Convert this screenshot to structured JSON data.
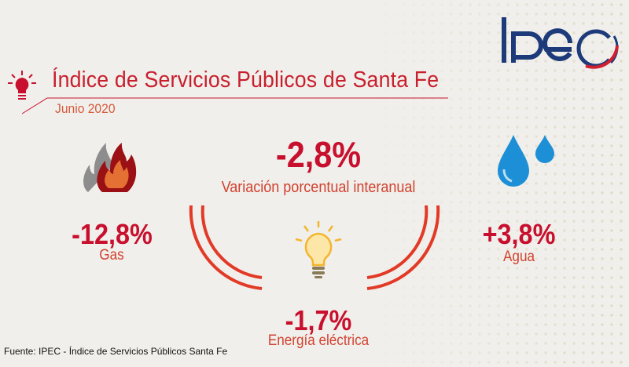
{
  "header": {
    "title": "Índice de Servicios Públicos de Santa Fe",
    "period": "Junio 2020",
    "logo": "IPEC"
  },
  "total": {
    "value": "-2,8%",
    "label": "Variación porcentual interanual"
  },
  "items": [
    {
      "value": "-12,8%",
      "label": "Gas",
      "icon": "flame-icon"
    },
    {
      "value": "+3,8%",
      "label": "Agua",
      "icon": "water-drop-icon"
    },
    {
      "value": "-1,7%",
      "label": "Energía eléctrica",
      "icon": "lightbulb-icon"
    }
  ],
  "footer": "Fuente: IPEC - Índice de Servicios Públicos Santa Fe",
  "colors": {
    "red": "#c8102e",
    "navy": "#1d3a7a",
    "background": "#f0efeb"
  }
}
